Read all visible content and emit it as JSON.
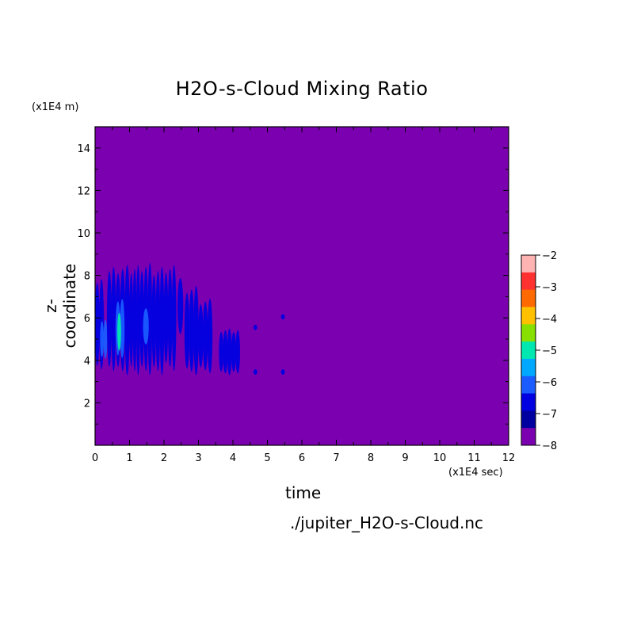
{
  "chart_data": {
    "type": "heatmap",
    "title": "H2O-s-Cloud Mixing Ratio",
    "xlabel": "time",
    "ylabel": "z-coordinate",
    "x_unit": "(x1E4 sec)",
    "y_unit": "(x1E4 m)",
    "xlim": [
      0,
      12
    ],
    "ylim": [
      0,
      15
    ],
    "x_ticks": [
      "0",
      "1",
      "2",
      "3",
      "4",
      "5",
      "6",
      "7",
      "8",
      "9",
      "10",
      "11",
      "12"
    ],
    "y_ticks": [
      "2",
      "4",
      "6",
      "8",
      "10",
      "12",
      "14"
    ],
    "y_tick_values": [
      2,
      4,
      6,
      8,
      10,
      12,
      14
    ],
    "background_level": -8,
    "colorbar": {
      "levels": [
        "-2",
        "-3",
        "-4",
        "-5",
        "-6",
        "-7",
        "-8"
      ],
      "level_values": [
        -2,
        -3,
        -4,
        -5,
        -6,
        -7,
        -8
      ],
      "colors": [
        "#ffb3b3",
        "#ff3030",
        "#ff6a00",
        "#ffc000",
        "#88e000",
        "#00e8b0",
        "#00a8ff",
        "#1a5cff",
        "#0000e0",
        "#0000a0",
        "#7b00b0"
      ]
    },
    "features": [
      {
        "x": [
          0.0,
          0.25
        ],
        "y": [
          3.4,
          8.0
        ],
        "level": -7
      },
      {
        "x": [
          0.15,
          0.35
        ],
        "y": [
          4.0,
          6.0
        ],
        "level": -6
      },
      {
        "x": [
          0.35,
          0.6
        ],
        "y": [
          3.3,
          8.6
        ],
        "level": -7
      },
      {
        "x": [
          0.6,
          1.0
        ],
        "y": [
          3.3,
          8.5
        ],
        "level": -7
      },
      {
        "x": [
          0.6,
          0.85
        ],
        "y": [
          4.0,
          7.0
        ],
        "level": -6
      },
      {
        "x": [
          0.65,
          0.75
        ],
        "y": [
          4.3,
          6.4
        ],
        "level": -5
      },
      {
        "x": [
          1.0,
          1.3
        ],
        "y": [
          3.3,
          8.5
        ],
        "level": -7
      },
      {
        "x": [
          1.3,
          1.65
        ],
        "y": [
          3.3,
          8.6
        ],
        "level": -7
      },
      {
        "x": [
          1.4,
          1.55
        ],
        "y": [
          4.6,
          6.6
        ],
        "level": -6
      },
      {
        "x": [
          1.65,
          2.0
        ],
        "y": [
          3.3,
          8.4
        ],
        "level": -7
      },
      {
        "x": [
          2.0,
          2.35
        ],
        "y": [
          3.5,
          8.5
        ],
        "level": -7
      },
      {
        "x": [
          2.4,
          2.55
        ],
        "y": [
          5.0,
          8.1
        ],
        "level": -7
      },
      {
        "x": [
          2.6,
          3.0
        ],
        "y": [
          3.3,
          7.5
        ],
        "level": -7
      },
      {
        "x": [
          3.0,
          3.4
        ],
        "y": [
          3.4,
          6.9
        ],
        "level": -7
      },
      {
        "x": [
          3.6,
          4.2
        ],
        "y": [
          3.3,
          5.5
        ],
        "level": -7
      },
      {
        "x": [
          4.6,
          4.7
        ],
        "y": [
          5.4,
          5.7
        ],
        "level": -7
      },
      {
        "x": [
          4.6,
          4.7
        ],
        "y": [
          3.3,
          3.6
        ],
        "level": -7
      },
      {
        "x": [
          5.4,
          5.5
        ],
        "y": [
          5.9,
          6.2
        ],
        "level": -7
      },
      {
        "x": [
          5.4,
          5.5
        ],
        "y": [
          3.3,
          3.6
        ],
        "level": -7
      }
    ]
  },
  "labels": {
    "filename": "./jupiter_H2O-s-Cloud.nc"
  }
}
